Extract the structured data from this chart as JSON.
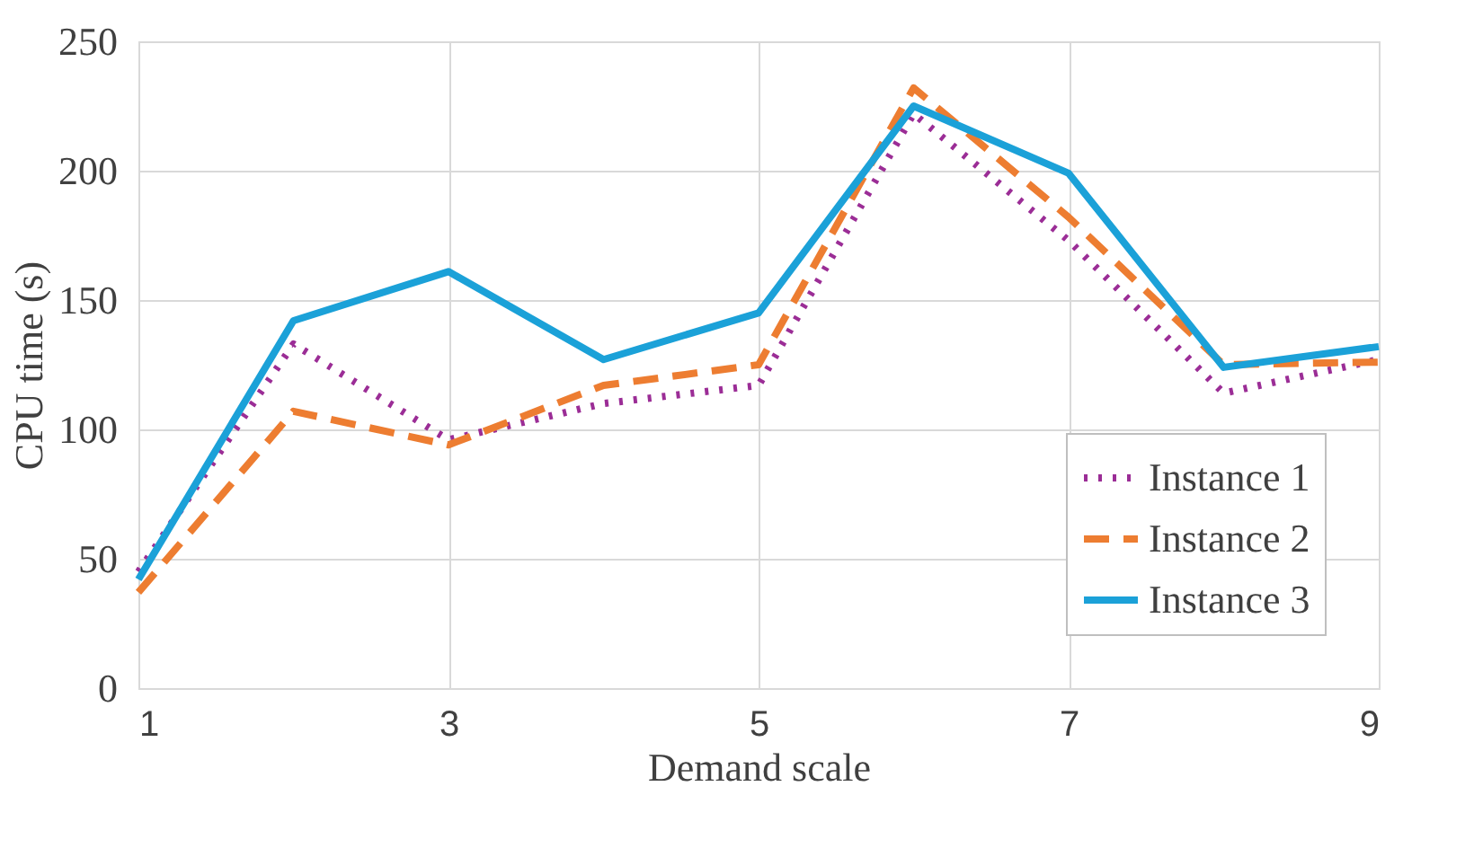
{
  "chart_data": {
    "type": "line",
    "xlabel": "Demand scale",
    "ylabel": "CPU time (s)",
    "x": [
      1,
      2,
      3,
      4,
      5,
      6,
      7,
      8,
      9
    ],
    "xlim": [
      1,
      9
    ],
    "xticks": [
      1,
      3,
      5,
      7,
      9
    ],
    "ylim": [
      0,
      250
    ],
    "yticks": [
      0,
      50,
      100,
      150,
      200,
      250
    ],
    "grid": true,
    "legend": "bottom right",
    "series": [
      {
        "name": "Instance 1",
        "color": "#9b2d96",
        "line_style": "dotted",
        "values": [
          45,
          133,
          96,
          110,
          117,
          222,
          173,
          114,
          127
        ]
      },
      {
        "name": "Instance 2",
        "color": "#ed7d31",
        "line_style": "dashed",
        "values": [
          37,
          107,
          94,
          117,
          125,
          232,
          182,
          125,
          126
        ]
      },
      {
        "name": "Instance 3",
        "color": "#1ba1d8",
        "line_style": "solid",
        "values": [
          42,
          142,
          161,
          127,
          145,
          225,
          199,
          124,
          132
        ]
      }
    ]
  }
}
